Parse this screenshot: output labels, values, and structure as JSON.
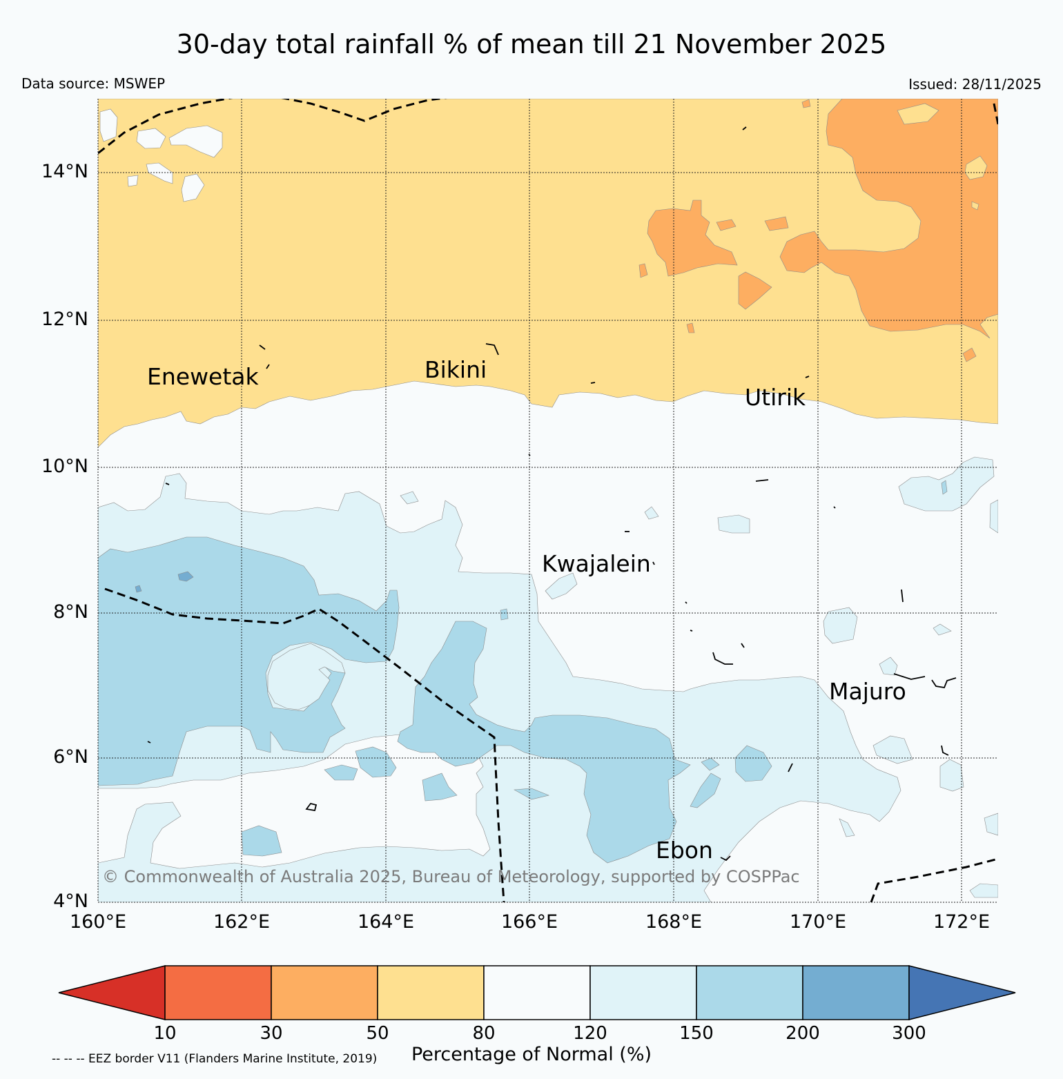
{
  "title": "30-day total rainfall % of mean till 21 November 2025",
  "data_source": "Data source: MSWEP",
  "issued": "Issued: 28/11/2025",
  "copyright": "© Commonwealth of Australia 2025, Bureau of Meteorology, supported by COSPPac",
  "eez_note": "-- -- -- EEZ border V11 (Flanders Marine Institute, 2019)",
  "axes": {
    "lat_labels": [
      "14°N",
      "12°N",
      "10°N",
      "8°N",
      "6°N",
      "4°N"
    ],
    "lon_labels": [
      "160°E",
      "162°E",
      "164°E",
      "166°E",
      "168°E",
      "170°E",
      "172°E"
    ],
    "lat_range": [
      4,
      14.9
    ],
    "lon_range": [
      160,
      172.5
    ]
  },
  "places": [
    {
      "name": "Enewetak"
    },
    {
      "name": "Bikini"
    },
    {
      "name": "Utirik"
    },
    {
      "name": "Kwajalein"
    },
    {
      "name": "Majuro"
    },
    {
      "name": "Ebon"
    }
  ],
  "colorbar": {
    "label": "Percentage of Normal (%)",
    "ticks": [
      "10",
      "30",
      "50",
      "80",
      "120",
      "150",
      "200",
      "300"
    ],
    "colors": {
      "lt10": "#d73027",
      "b10_30": "#f46d43",
      "b30_50": "#fdae61",
      "b50_80": "#fee090",
      "b80_120": "#f8fbfc",
      "b120_150": "#e0f3f8",
      "b150_200": "#abd9e9",
      "b200_300": "#74add1",
      "gt300": "#4575b4"
    }
  }
}
